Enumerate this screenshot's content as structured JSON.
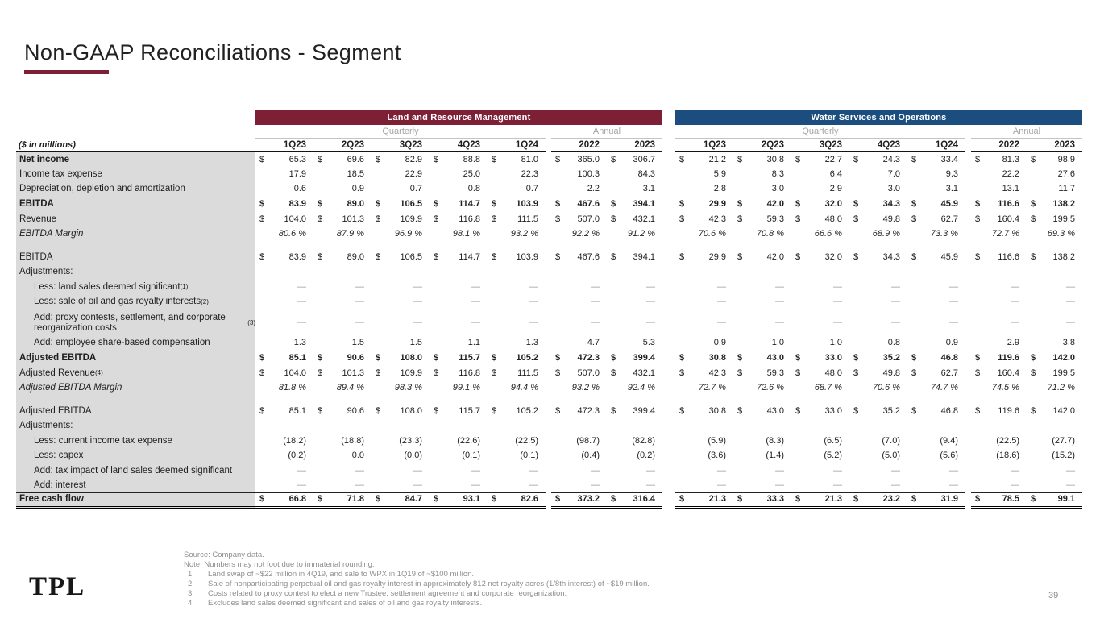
{
  "page": {
    "title": "Non-GAAP Reconciliations - Segment",
    "page_number": "39",
    "logo": "TPL",
    "accent_color": "#7d1f35"
  },
  "table": {
    "units_label": "($ in millions)",
    "groups": [
      {
        "name": "Land and Resource Management",
        "color": "#7d1f35"
      },
      {
        "name": "Water Services and Operations",
        "color": "#1b4d7e"
      }
    ],
    "subgroup_labels": {
      "quarterly": "Quarterly",
      "annual": "Annual"
    },
    "quarter_columns": [
      "1Q23",
      "2Q23",
      "3Q23",
      "4Q23",
      "1Q24"
    ],
    "annual_columns": [
      "2022",
      "2023"
    ],
    "rows": [
      {
        "label": "Net income",
        "lb": 1,
        "d": 1,
        "lq": [
          "65.3",
          "69.6",
          "82.9",
          "88.8",
          "81.0"
        ],
        "la": [
          "365.0",
          "306.7"
        ],
        "wq": [
          "21.2",
          "30.8",
          "22.7",
          "24.3",
          "33.4"
        ],
        "wa": [
          "81.3",
          "98.9"
        ]
      },
      {
        "label": "Income tax expense",
        "lq": [
          "17.9",
          "18.5",
          "22.9",
          "25.0",
          "22.3"
        ],
        "la": [
          "100.3",
          "84.3"
        ],
        "wq": [
          "5.9",
          "8.3",
          "6.4",
          "7.0",
          "9.3"
        ],
        "wa": [
          "22.2",
          "27.6"
        ]
      },
      {
        "label": "Depreciation, depletion and amortization",
        "bb": 1,
        "lq": [
          "0.6",
          "0.9",
          "0.7",
          "0.8",
          "0.7"
        ],
        "la": [
          "2.2",
          "3.1"
        ],
        "wq": [
          "2.8",
          "3.0",
          "2.9",
          "3.0",
          "3.1"
        ],
        "wa": [
          "13.1",
          "11.7"
        ]
      },
      {
        "label": "EBITDA",
        "lb": 1,
        "vb": 1,
        "d": 1,
        "lq": [
          "83.9",
          "89.0",
          "106.5",
          "114.7",
          "103.9"
        ],
        "la": [
          "467.6",
          "394.1"
        ],
        "wq": [
          "29.9",
          "42.0",
          "32.0",
          "34.3",
          "45.9"
        ],
        "wa": [
          "116.6",
          "138.2"
        ]
      },
      {
        "label": "Revenue",
        "d": 1,
        "lq": [
          "104.0",
          "101.3",
          "109.9",
          "116.8",
          "111.5"
        ],
        "la": [
          "507.0",
          "432.1"
        ],
        "wq": [
          "42.3",
          "59.3",
          "48.0",
          "49.8",
          "62.7"
        ],
        "wa": [
          "160.4",
          "199.5"
        ]
      },
      {
        "label": "EBITDA Margin",
        "i": 1,
        "lq": [
          "80.6 %",
          "87.9 %",
          "96.9 %",
          "98.1 %",
          "93.2 %"
        ],
        "la": [
          "92.2 %",
          "91.2 %"
        ],
        "wq": [
          "70.6 %",
          "70.8 %",
          "66.6 %",
          "68.9 %",
          "73.3 %"
        ],
        "wa": [
          "72.7 %",
          "69.3 %"
        ]
      },
      {
        "sp": 1
      },
      {
        "label": "EBITDA",
        "d": 1,
        "lq": [
          "83.9",
          "89.0",
          "106.5",
          "114.7",
          "103.9"
        ],
        "la": [
          "467.6",
          "394.1"
        ],
        "wq": [
          "29.9",
          "42.0",
          "32.0",
          "34.3",
          "45.9"
        ],
        "wa": [
          "116.6",
          "138.2"
        ]
      },
      {
        "label": "Adjustments:"
      },
      {
        "label": "Less: land sales deemed significant",
        "sup": "(1)",
        "ind": 1,
        "lq": [
          "—",
          "—",
          "—",
          "—",
          "—"
        ],
        "la": [
          "—",
          "—"
        ],
        "wq": [
          "—",
          "—",
          "—",
          "—",
          "—"
        ],
        "wa": [
          "—",
          "—"
        ]
      },
      {
        "label": "Less: sale of oil and gas royalty interests ",
        "sup": "(2)",
        "ind": 1,
        "lq": [
          "—",
          "—",
          "—",
          "—",
          "—"
        ],
        "la": [
          "—",
          "—"
        ],
        "wq": [
          "—",
          "—",
          "—",
          "—",
          "—"
        ],
        "wa": [
          "—",
          "—"
        ]
      },
      {
        "label": "Add: proxy contests, settlement, and corporate reorganization costs",
        "sup": "(3)",
        "ind": 1,
        "h2": 1,
        "lq": [
          "—",
          "—",
          "—",
          "—",
          "—"
        ],
        "la": [
          "—",
          "—"
        ],
        "wq": [
          "—",
          "—",
          "—",
          "—",
          "—"
        ],
        "wa": [
          "—",
          "—"
        ]
      },
      {
        "label": "Add: employee share-based compensation",
        "ind": 1,
        "bb": 1,
        "lq": [
          "1.3",
          "1.5",
          "1.5",
          "1.1",
          "1.3"
        ],
        "la": [
          "4.7",
          "5.3"
        ],
        "wq": [
          "0.9",
          "1.0",
          "1.0",
          "0.8",
          "0.9"
        ],
        "wa": [
          "2.9",
          "3.8"
        ]
      },
      {
        "label": "Adjusted EBITDA",
        "lb": 1,
        "vb": 1,
        "d": 1,
        "lq": [
          "85.1",
          "90.6",
          "108.0",
          "115.7",
          "105.2"
        ],
        "la": [
          "472.3",
          "399.4"
        ],
        "wq": [
          "30.8",
          "43.0",
          "33.0",
          "35.2",
          "46.8"
        ],
        "wa": [
          "119.6",
          "142.0"
        ]
      },
      {
        "label": "Adjusted Revenue ",
        "sup": "(4)",
        "d": 1,
        "lq": [
          "104.0",
          "101.3",
          "109.9",
          "116.8",
          "111.5"
        ],
        "la": [
          "507.0",
          "432.1"
        ],
        "wq": [
          "42.3",
          "59.3",
          "48.0",
          "49.8",
          "62.7"
        ],
        "wa": [
          "160.4",
          "199.5"
        ]
      },
      {
        "label": "Adjusted EBITDA Margin",
        "i": 1,
        "lq": [
          "81.8 %",
          "89.4 %",
          "98.3 %",
          "99.1 %",
          "94.4 %"
        ],
        "la": [
          "93.2 %",
          "92.4 %"
        ],
        "wq": [
          "72.7 %",
          "72.6 %",
          "68.7 %",
          "70.6 %",
          "74.7 %"
        ],
        "wa": [
          "74.5 %",
          "71.2 %"
        ]
      },
      {
        "sp": 1
      },
      {
        "label": "Adjusted EBITDA",
        "d": 1,
        "lq": [
          "85.1",
          "90.6",
          "108.0",
          "115.7",
          "105.2"
        ],
        "la": [
          "472.3",
          "399.4"
        ],
        "wq": [
          "30.8",
          "43.0",
          "33.0",
          "35.2",
          "46.8"
        ],
        "wa": [
          "119.6",
          "142.0"
        ]
      },
      {
        "label": "Adjustments:"
      },
      {
        "label": "Less: current income tax expense",
        "ind": 1,
        "lq": [
          "(18.2)",
          "(18.8)",
          "(23.3)",
          "(22.6)",
          "(22.5)"
        ],
        "la": [
          "(98.7)",
          "(82.8)"
        ],
        "wq": [
          "(5.9)",
          "(8.3)",
          "(6.5)",
          "(7.0)",
          "(9.4)"
        ],
        "wa": [
          "(22.5)",
          "(27.7)"
        ]
      },
      {
        "label": "Less: capex",
        "ind": 1,
        "lq": [
          "(0.2)",
          "0.0",
          "(0.0)",
          "(0.1)",
          "(0.1)"
        ],
        "la": [
          "(0.4)",
          "(0.2)"
        ],
        "wq": [
          "(3.6)",
          "(1.4)",
          "(5.2)",
          "(5.0)",
          "(5.6)"
        ],
        "wa": [
          "(18.6)",
          "(15.2)"
        ]
      },
      {
        "label": "Add: tax impact of land sales deemed significant",
        "ind": 1,
        "lq": [
          "—",
          "—",
          "—",
          "—",
          "—"
        ],
        "la": [
          "—",
          "—"
        ],
        "wq": [
          "—",
          "—",
          "—",
          "—",
          "—"
        ],
        "wa": [
          "—",
          "—"
        ]
      },
      {
        "label": "Add: interest",
        "ind": 1,
        "bb": 1,
        "lq": [
          "—",
          "—",
          "—",
          "—",
          "—"
        ],
        "la": [
          "—",
          "—"
        ],
        "wq": [
          "—",
          "—",
          "—",
          "—",
          "—"
        ],
        "wa": [
          "—",
          "—"
        ]
      },
      {
        "label": "Free cash flow",
        "lb": 1,
        "vb": 1,
        "d": 1,
        "dbl": 1,
        "lq": [
          "66.8",
          "71.8",
          "84.7",
          "93.1",
          "82.6"
        ],
        "la": [
          "373.2",
          "316.4"
        ],
        "wq": [
          "21.3",
          "33.3",
          "21.3",
          "23.2",
          "31.9"
        ],
        "wa": [
          "78.5",
          "99.1"
        ]
      }
    ]
  },
  "footnotes": {
    "source": "Source: Company data.",
    "note": "Note: Numbers may not foot due to immaterial rounding.",
    "items": [
      {
        "n": "1.",
        "text": "Land swap of ~$22 million in 4Q19, and sale to WPX in 1Q19 of ~$100 million."
      },
      {
        "n": "2.",
        "text": "Sale of nonparticipating perpetual oil and gas royalty interest in approximately 812 net royalty acres (1/8th interest) of ~$19 million."
      },
      {
        "n": "3.",
        "text": "Costs related to proxy contest to elect a new Trustee, settlement agreement and corporate reorganization."
      },
      {
        "n": "4.",
        "text": "Excludes land sales deemed significant and sales of oil and gas royalty interests."
      }
    ]
  }
}
